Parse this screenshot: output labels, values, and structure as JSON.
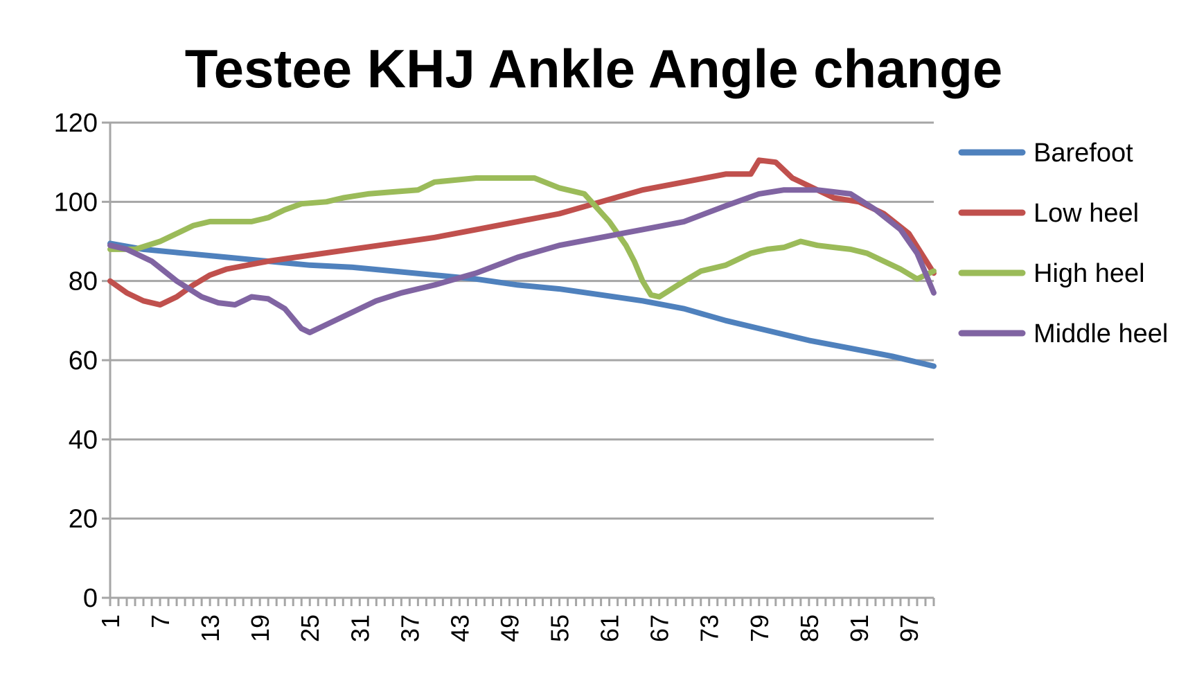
{
  "chart_data": {
    "type": "line",
    "title": "Testee KHJ Ankle Angle change",
    "xlabel": "",
    "ylabel": "",
    "ylim": [
      0,
      120
    ],
    "yticks": [
      0,
      20,
      40,
      60,
      80,
      100,
      120
    ],
    "x_range": [
      1,
      100
    ],
    "xtick_labels": [
      1,
      7,
      13,
      19,
      25,
      31,
      37,
      43,
      49,
      55,
      61,
      67,
      73,
      79,
      85,
      91,
      97
    ],
    "grid": true,
    "legend_position": "right",
    "series": [
      {
        "name": "Barefoot",
        "color": "#4f81bd",
        "points": [
          [
            1,
            89.5
          ],
          [
            5,
            88
          ],
          [
            10,
            87
          ],
          [
            15,
            86
          ],
          [
            20,
            85
          ],
          [
            25,
            84
          ],
          [
            30,
            83.5
          ],
          [
            35,
            82.5
          ],
          [
            40,
            81.5
          ],
          [
            45,
            80.5
          ],
          [
            50,
            79
          ],
          [
            55,
            78
          ],
          [
            60,
            76.5
          ],
          [
            65,
            75
          ],
          [
            70,
            73
          ],
          [
            75,
            70
          ],
          [
            80,
            67.5
          ],
          [
            85,
            65
          ],
          [
            90,
            63
          ],
          [
            95,
            61
          ],
          [
            100,
            58.5
          ]
        ]
      },
      {
        "name": "Low heel",
        "color": "#c0504d",
        "points": [
          [
            1,
            80
          ],
          [
            3,
            77
          ],
          [
            5,
            75
          ],
          [
            7,
            74
          ],
          [
            9,
            76
          ],
          [
            11,
            79
          ],
          [
            13,
            81.5
          ],
          [
            15,
            83
          ],
          [
            20,
            85
          ],
          [
            25,
            86.5
          ],
          [
            30,
            88
          ],
          [
            35,
            89.5
          ],
          [
            40,
            91
          ],
          [
            45,
            93
          ],
          [
            50,
            95
          ],
          [
            55,
            97
          ],
          [
            60,
            100
          ],
          [
            65,
            103
          ],
          [
            70,
            105
          ],
          [
            75,
            107
          ],
          [
            78,
            107
          ],
          [
            79,
            110.5
          ],
          [
            81,
            110
          ],
          [
            83,
            106
          ],
          [
            86,
            103
          ],
          [
            88,
            101
          ],
          [
            91,
            100
          ],
          [
            94,
            97
          ],
          [
            97,
            92
          ],
          [
            100,
            82
          ]
        ]
      },
      {
        "name": "High heel",
        "color": "#9bbb59",
        "points": [
          [
            1,
            88
          ],
          [
            4,
            88
          ],
          [
            7,
            90
          ],
          [
            9,
            92
          ],
          [
            11,
            94
          ],
          [
            13,
            95
          ],
          [
            18,
            95
          ],
          [
            20,
            96
          ],
          [
            22,
            98
          ],
          [
            24,
            99.5
          ],
          [
            27,
            100
          ],
          [
            29,
            101
          ],
          [
            32,
            102
          ],
          [
            35,
            102.5
          ],
          [
            38,
            103
          ],
          [
            40,
            105
          ],
          [
            45,
            106
          ],
          [
            52,
            106
          ],
          [
            55,
            103.5
          ],
          [
            58,
            102
          ],
          [
            61,
            95
          ],
          [
            63,
            89
          ],
          [
            64,
            85
          ],
          [
            65,
            80
          ],
          [
            66,
            76.5
          ],
          [
            67,
            76
          ],
          [
            70,
            80
          ],
          [
            72,
            82.5
          ],
          [
            75,
            84
          ],
          [
            78,
            87
          ],
          [
            80,
            88
          ],
          [
            82,
            88.5
          ],
          [
            84,
            90
          ],
          [
            86,
            89
          ],
          [
            88,
            88.5
          ],
          [
            90,
            88
          ],
          [
            92,
            87
          ],
          [
            94,
            85
          ],
          [
            96,
            83
          ],
          [
            98,
            80.5
          ],
          [
            100,
            82.5
          ]
        ]
      },
      {
        "name": "Middle heel",
        "color": "#8064a2",
        "points": [
          [
            1,
            89
          ],
          [
            3,
            88
          ],
          [
            6,
            85
          ],
          [
            9,
            80
          ],
          [
            12,
            76
          ],
          [
            14,
            74.5
          ],
          [
            16,
            74
          ],
          [
            18,
            76
          ],
          [
            20,
            75.5
          ],
          [
            22,
            73
          ],
          [
            24,
            68
          ],
          [
            25,
            67
          ],
          [
            26,
            68
          ],
          [
            28,
            70
          ],
          [
            30,
            72
          ],
          [
            33,
            75
          ],
          [
            36,
            77
          ],
          [
            40,
            79
          ],
          [
            45,
            82
          ],
          [
            50,
            86
          ],
          [
            55,
            89
          ],
          [
            60,
            91
          ],
          [
            65,
            93
          ],
          [
            70,
            95
          ],
          [
            75,
            99
          ],
          [
            79,
            102
          ],
          [
            82,
            103
          ],
          [
            86,
            103
          ],
          [
            90,
            102
          ],
          [
            93,
            98
          ],
          [
            96,
            93
          ],
          [
            98,
            87
          ],
          [
            100,
            77
          ]
        ]
      }
    ]
  }
}
